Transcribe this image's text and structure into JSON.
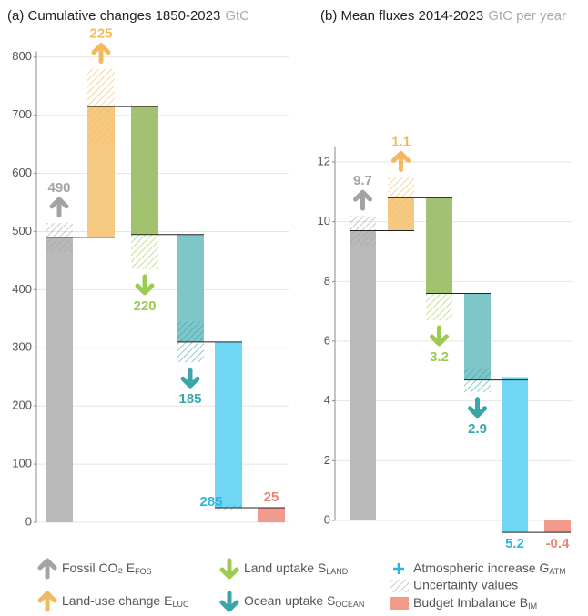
{
  "chart_data": [
    {
      "type": "waterfall",
      "title": "(a) Cumulative changes 1850-2023",
      "unit": "GtC",
      "values": [
        490,
        225,
        220,
        185,
        285,
        25
      ],
      "uncertainty": [
        25,
        65,
        60,
        35,
        5,
        null
      ],
      "ylim": [
        0,
        810
      ],
      "yticks": [
        0,
        100,
        200,
        300,
        400,
        500,
        600,
        700,
        800
      ],
      "grid": true
    },
    {
      "type": "waterfall",
      "title": "(b) Mean fluxes 2014-2023",
      "unit": "GtC per year",
      "values": [
        9.7,
        1.1,
        3.2,
        2.9,
        5.2,
        -0.4
      ],
      "uncertainty": [
        0.5,
        0.7,
        0.9,
        0.4,
        null,
        null
      ],
      "ylim": [
        -0.5,
        12.5
      ],
      "yticks": [
        0,
        2,
        4,
        6,
        8,
        10,
        12
      ],
      "grid": true
    }
  ],
  "legend": [
    {
      "name": "Fossil CO₂ E",
      "subscript": "FOS",
      "color": "#b9b9b9",
      "label_color": "#a3a3a3"
    },
    {
      "name": "Land-use change E",
      "subscript": "LUC",
      "color": "#f6c983",
      "label_color": "#f2b95e"
    },
    {
      "name": "Land uptake S",
      "subscript": "LAND",
      "color": "#a3c172",
      "label_color": "#9ccc4f"
    },
    {
      "name": "Ocean uptake S",
      "subscript": "OCEAN",
      "color": "#7fc6c9",
      "label_color": "#3aa6aa"
    },
    {
      "name": "Atmospheric increase G",
      "subscript": "ATM",
      "color": "#6fd6f4",
      "label_color": "#2bb6e2"
    },
    {
      "name": "Budget Imbalance B",
      "subscript": "IM",
      "color": "#f29a8c",
      "label_color": "#ee8474"
    }
  ],
  "uncertainty_label": "Uncertainty values"
}
